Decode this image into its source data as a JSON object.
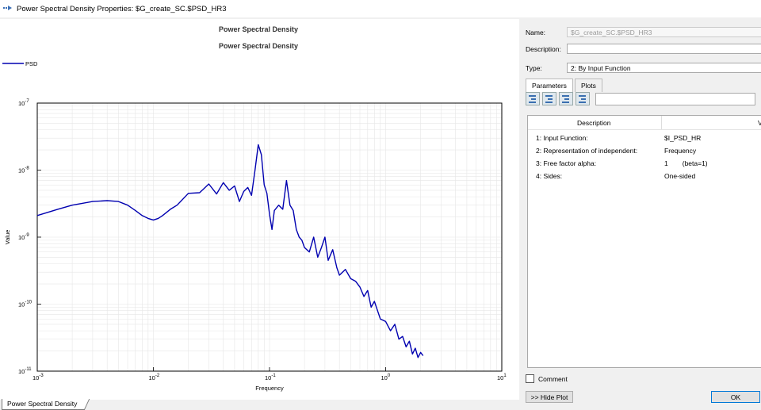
{
  "window": {
    "title": "Power Spectral Density Properties: $G_create_SC.$PSD_HR3"
  },
  "plot": {
    "tab_label": "Power Spectral Density",
    "legend_label": "PSD"
  },
  "chart_data": {
    "type": "line",
    "title": "Power Spectral Density",
    "subtitle": "Power Spectral Density",
    "xlabel": "Frequency",
    "ylabel": "Value",
    "x_scale": "log",
    "y_scale": "log",
    "xlim": [
      0.001,
      10
    ],
    "ylim": [
      1e-11,
      1e-07
    ],
    "grid": true,
    "legend_position": "top-left",
    "x_ticks": [
      {
        "value": 0.001,
        "base": "10",
        "exp": "-3"
      },
      {
        "value": 0.01,
        "base": "10",
        "exp": "-2"
      },
      {
        "value": 0.1,
        "base": "10",
        "exp": "-1"
      },
      {
        "value": 1,
        "base": "10",
        "exp": "0"
      },
      {
        "value": 10,
        "base": "10",
        "exp": "1"
      }
    ],
    "y_ticks": [
      {
        "value": 1e-11,
        "base": "10",
        "exp": "-11"
      },
      {
        "value": 1e-10,
        "base": "10",
        "exp": "-10"
      },
      {
        "value": 1e-09,
        "base": "10",
        "exp": "-9"
      },
      {
        "value": 1e-08,
        "base": "10",
        "exp": "-8"
      },
      {
        "value": 1e-07,
        "base": "10",
        "exp": "-7"
      }
    ],
    "series": [
      {
        "name": "PSD",
        "color": "#0000b0",
        "x": [
          0.001,
          0.0015,
          0.002,
          0.003,
          0.004,
          0.005,
          0.006,
          0.007,
          0.008,
          0.009,
          0.01,
          0.011,
          0.012,
          0.014,
          0.016,
          0.02,
          0.025,
          0.03,
          0.035,
          0.04,
          0.045,
          0.05,
          0.055,
          0.06,
          0.065,
          0.07,
          0.075,
          0.08,
          0.085,
          0.09,
          0.095,
          0.1,
          0.105,
          0.11,
          0.12,
          0.13,
          0.14,
          0.15,
          0.16,
          0.17,
          0.18,
          0.19,
          0.2,
          0.22,
          0.24,
          0.26,
          0.28,
          0.3,
          0.32,
          0.35,
          0.38,
          0.4,
          0.45,
          0.5,
          0.55,
          0.6,
          0.65,
          0.7,
          0.75,
          0.8,
          0.9,
          1.0,
          1.1,
          1.2,
          1.3,
          1.4,
          1.5,
          1.6,
          1.7,
          1.8,
          1.9,
          2.0,
          2.1
        ],
        "y": [
          2.1e-09,
          2.6e-09,
          3e-09,
          3.4e-09,
          3.5e-09,
          3.4e-09,
          3e-09,
          2.5e-09,
          2.1e-09,
          1.9e-09,
          1.8e-09,
          1.9e-09,
          2.1e-09,
          2.6e-09,
          3e-09,
          4.5e-09,
          4.6e-09,
          6.2e-09,
          4.4e-09,
          6.5e-09,
          5e-09,
          5.8e-09,
          3.4e-09,
          4.8e-09,
          5.5e-09,
          4.2e-09,
          1e-08,
          2.4e-08,
          1.7e-08,
          6e-09,
          4.5e-09,
          2.2e-09,
          1.3e-09,
          2.5e-09,
          3e-09,
          2.6e-09,
          7e-09,
          3e-09,
          2.5e-09,
          1.3e-09,
          1e-09,
          9e-10,
          7e-10,
          6e-10,
          1e-09,
          5e-10,
          7e-10,
          1e-09,
          4.5e-10,
          6.5e-10,
          3.5e-10,
          2.7e-10,
          3.3e-10,
          2.4e-10,
          2.2e-10,
          1.8e-10,
          1.3e-10,
          1.6e-10,
          9e-11,
          1.1e-10,
          6e-11,
          5.5e-11,
          4e-11,
          5e-11,
          3e-11,
          3.3e-11,
          2.3e-11,
          2.8e-11,
          1.8e-11,
          2.2e-11,
          1.6e-11,
          1.9e-11,
          1.7e-11
        ]
      }
    ]
  },
  "form": {
    "name_label": "Name:",
    "name_value": "$G_create_SC.$PSD_HR3",
    "description_label": "Description:",
    "description_value": "",
    "type_label": "Type:",
    "type_value": "2: By Input Function"
  },
  "tabs": [
    {
      "label": "Parameters",
      "active": true
    },
    {
      "label": "Plots",
      "active": false
    }
  ],
  "table": {
    "col_description": "Description",
    "col_value": "Va",
    "rows": [
      {
        "desc": "1: Input Function:",
        "value": "$I_PSD_HR",
        "extra": ""
      },
      {
        "desc": "2: Representation of independent:",
        "value": "Frequency",
        "extra": ""
      },
      {
        "desc": "3: Free factor alpha:",
        "value": "1",
        "extra": "(beta=1)"
      },
      {
        "desc": "4: Sides:",
        "value": "One-sided",
        "extra": ""
      }
    ]
  },
  "footer": {
    "comment_label": "Comment",
    "hide_plot_label": ">> Hide Plot",
    "ok_label": "OK"
  }
}
